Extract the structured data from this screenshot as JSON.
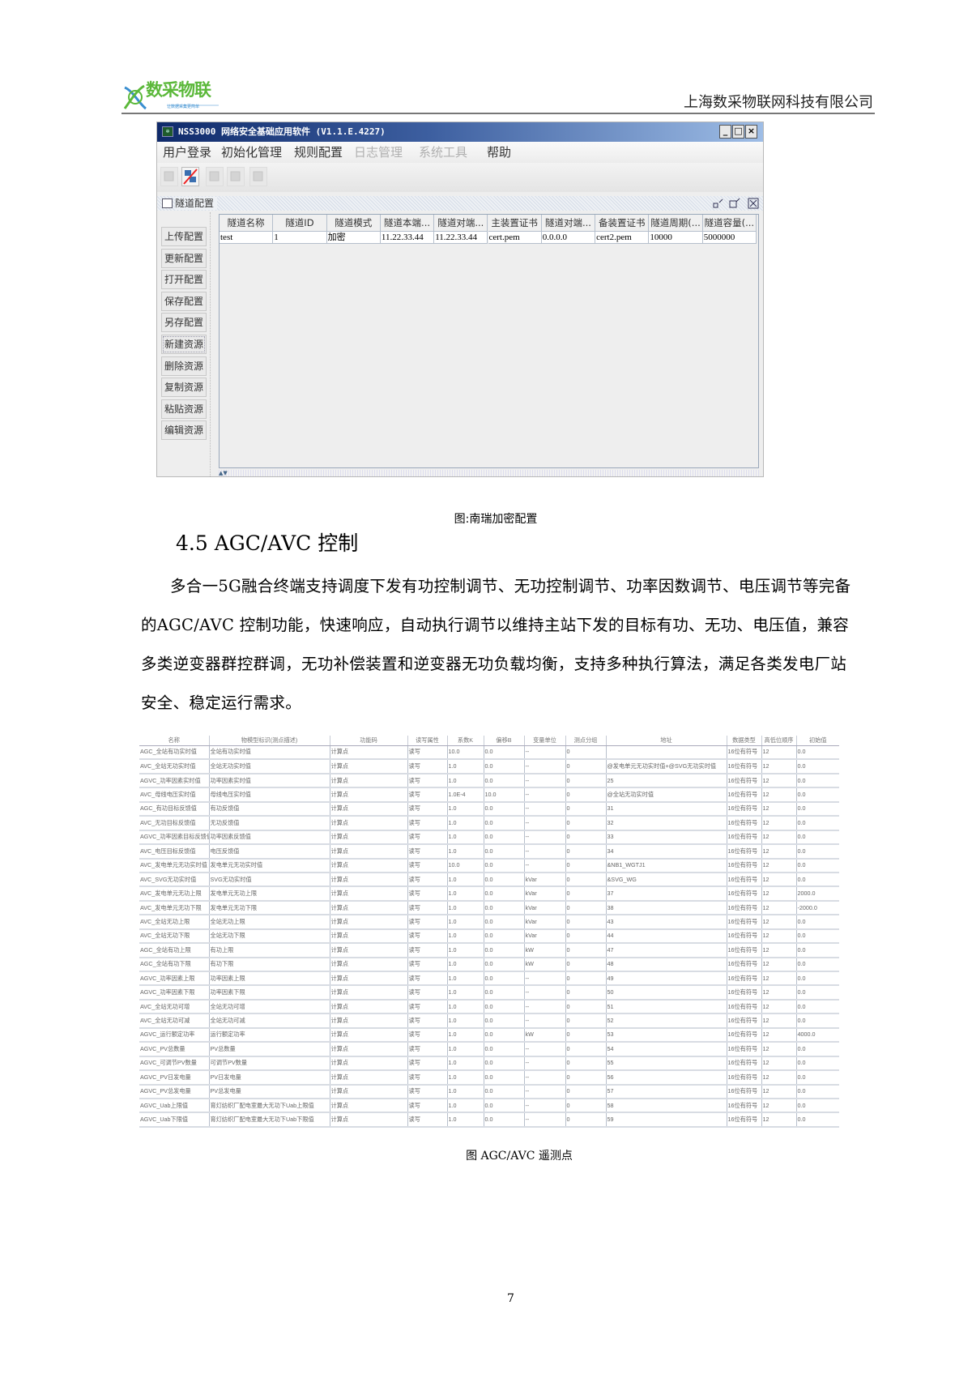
{
  "header": {
    "logo_text": "数采物联",
    "logo_slogan": "让数据采集更简单",
    "company": "上海数采物联网科技有限公司"
  },
  "window": {
    "title": "NSS3000 网络安全基础应用软件 (V1.1.E.4227)",
    "app_icon": "app-logo-icon",
    "controls": {
      "minimize": "_",
      "maximize": "□",
      "close": "×"
    },
    "menu": [
      {
        "label": "用户登录",
        "enabled": true
      },
      {
        "label": "初始化管理",
        "enabled": true
      },
      {
        "label": "规则配置",
        "enabled": true
      },
      {
        "label": "日志管理",
        "enabled": false
      },
      {
        "label": "系统工具",
        "enabled": false
      },
      {
        "label": "帮助",
        "enabled": true
      }
    ],
    "toolbar_icons": [
      "login-icon",
      "disconnect-icon",
      "config-icon",
      "form-icon",
      "export-icon"
    ],
    "inner_frame": {
      "title": "隧道配置"
    },
    "side_buttons": [
      "上传配置",
      "更新配置",
      "打开配置",
      "保存配置",
      "另存配置",
      "新建资源",
      "删除资源",
      "复制资源",
      "粘贴资源",
      "编辑资源"
    ],
    "table": {
      "columns": [
        "隧道名称",
        "隧道ID",
        "隧道模式",
        "隧道本端...",
        "隧道对端...",
        "主装置证书",
        "隧道对端...",
        "备装置证书",
        "隧道周期(...",
        "隧道容量(..."
      ],
      "rows": [
        [
          "test",
          "1",
          "加密",
          "11.22.33.44",
          "11.22.33.44",
          "cert.pem",
          "0.0.0.0",
          "cert2.pem",
          "10000",
          "5000000"
        ]
      ]
    }
  },
  "caption1": "图:南瑞加密配置",
  "section": {
    "heading": "4.5 AGC/AVC 控制",
    "paragraph": "多合一5G融合终端支持调度下发有功控制调节、无功控制调节、功率因数调节、电压调节等完备的AGC/AVC 控制功能，快速响应，自动执行调节以维持主站下发的目标有功、无功、电压值，兼容多类逆变器群控群调，无功补偿装置和逆变器无功负载均衡，支持多种执行算法，满足各类发电厂站安全、稳定运行需求。"
  },
  "points_table": {
    "columns": [
      "名称",
      "物模型标识(测点描述)",
      "功能码",
      "读写属性",
      "系数K",
      "偏移B",
      "变量单位",
      "测点分组",
      "地址",
      "数据类型",
      "高低位顺序",
      "初始值"
    ],
    "rows": [
      [
        "AGC_全站有功实时值",
        "全站有功实时值",
        "计算点",
        "读写",
        "10.0",
        "0.0",
        "--",
        "0",
        "",
        "16位有符号",
        "12",
        "0.0"
      ],
      [
        "AVC_全站无功实时值",
        "全站无功实时值",
        "计算点",
        "读写",
        "1.0",
        "0.0",
        "--",
        "0",
        "@发电单元无功实时值+@SVG无功实时值",
        "16位有符号",
        "12",
        "0.0"
      ],
      [
        "AGVC_功率因素实时值",
        "功率因素实时值",
        "计算点",
        "读写",
        "1.0",
        "0.0",
        "--",
        "0",
        "25",
        "16位有符号",
        "12",
        "0.0"
      ],
      [
        "AVC_母线电压实时值",
        "母线电压实时值",
        "计算点",
        "读写",
        "1.0E-4",
        "10.0",
        "--",
        "0",
        "@全站无功实时值",
        "16位有符号",
        "12",
        "0.0"
      ],
      [
        "AGC_有功目标反馈值",
        "有功反馈值",
        "计算点",
        "读写",
        "1.0",
        "0.0",
        "--",
        "0",
        "31",
        "16位有符号",
        "12",
        "0.0"
      ],
      [
        "AVC_无功目标反馈值",
        "无功反馈值",
        "计算点",
        "读写",
        "1.0",
        "0.0",
        "--",
        "0",
        "32",
        "16位有符号",
        "12",
        "0.0"
      ],
      [
        "AGVC_功率因素目标反馈值",
        "功率因素反馈值",
        "计算点",
        "读写",
        "1.0",
        "0.0",
        "--",
        "0",
        "33",
        "16位有符号",
        "12",
        "0.0"
      ],
      [
        "AVC_电压目标反馈值",
        "电压反馈值",
        "计算点",
        "读写",
        "1.0",
        "0.0",
        "--",
        "0",
        "34",
        "16位有符号",
        "12",
        "0.0"
      ],
      [
        "AVC_发电单元无功实时值",
        "发电单元无功实时值",
        "计算点",
        "读写",
        "10.0",
        "0.0",
        "--",
        "0",
        "&NB1_WGTJ1",
        "16位有符号",
        "12",
        "0.0"
      ],
      [
        "AVC_SVG无功实时值",
        "SVG无功实时值",
        "计算点",
        "读写",
        "1.0",
        "0.0",
        "kVar",
        "0",
        "&SVG_WG",
        "16位有符号",
        "12",
        "0.0"
      ],
      [
        "AVC_发电单元无功上限",
        "发电单元无功上限",
        "计算点",
        "读写",
        "1.0",
        "0.0",
        "kVar",
        "0",
        "37",
        "16位有符号",
        "12",
        "2000.0"
      ],
      [
        "AVC_发电单元无功下限",
        "发电单元无功下限",
        "计算点",
        "读写",
        "1.0",
        "0.0",
        "kVar",
        "0",
        "38",
        "16位有符号",
        "12",
        "-2000.0"
      ],
      [
        "AVC_全站无功上限",
        "全站无功上限",
        "计算点",
        "读写",
        "1.0",
        "0.0",
        "kVar",
        "0",
        "43",
        "16位有符号",
        "12",
        "0.0"
      ],
      [
        "AVC_全站无功下限",
        "全站无功下限",
        "计算点",
        "读写",
        "1.0",
        "0.0",
        "kVar",
        "0",
        "44",
        "16位有符号",
        "12",
        "0.0"
      ],
      [
        "AGC_全站有功上限",
        "有功上限",
        "计算点",
        "读写",
        "1.0",
        "0.0",
        "kW",
        "0",
        "47",
        "16位有符号",
        "12",
        "0.0"
      ],
      [
        "AGC_全站有功下限",
        "有功下限",
        "计算点",
        "读写",
        "1.0",
        "0.0",
        "kW",
        "0",
        "48",
        "16位有符号",
        "12",
        "0.0"
      ],
      [
        "AGVC_功率因素上限",
        "功率因素上限",
        "计算点",
        "读写",
        "1.0",
        "0.0",
        "--",
        "0",
        "49",
        "16位有符号",
        "12",
        "0.0"
      ],
      [
        "AGVC_功率因素下限",
        "功率因素下限",
        "计算点",
        "读写",
        "1.0",
        "0.0",
        "--",
        "0",
        "50",
        "16位有符号",
        "12",
        "0.0"
      ],
      [
        "AVC_全站无功可增",
        "全站无功可增",
        "计算点",
        "读写",
        "1.0",
        "0.0",
        "--",
        "0",
        "51",
        "16位有符号",
        "12",
        "0.0"
      ],
      [
        "AVC_全站无功可减",
        "全站无功可减",
        "计算点",
        "读写",
        "1.0",
        "0.0",
        "--",
        "0",
        "52",
        "16位有符号",
        "12",
        "0.0"
      ],
      [
        "AGVC_运行额定功率",
        "运行额定功率",
        "计算点",
        "读写",
        "1.0",
        "0.0",
        "kW",
        "0",
        "53",
        "16位有符号",
        "12",
        "4000.0"
      ],
      [
        "AGVC_PV总数量",
        "PV总数量",
        "计算点",
        "读写",
        "1.0",
        "0.0",
        "--",
        "0",
        "54",
        "16位有符号",
        "12",
        "0.0"
      ],
      [
        "AGVC_可调节PV数量",
        "可调节PV数量",
        "计算点",
        "读写",
        "1.0",
        "0.0",
        "--",
        "0",
        "55",
        "16位有符号",
        "12",
        "0.0"
      ],
      [
        "AGVC_PV日发电量",
        "PV日发电量",
        "计算点",
        "读写",
        "1.0",
        "0.0",
        "--",
        "0",
        "56",
        "16位有符号",
        "12",
        "0.0"
      ],
      [
        "AGVC_PV总发电量",
        "PV总发电量",
        "计算点",
        "读写",
        "1.0",
        "0.0",
        "--",
        "0",
        "57",
        "16位有符号",
        "12",
        "0.0"
      ],
      [
        "AGVC_Uab上限值",
        "育灯纺织厂配电室最大无功下Uab上限值",
        "计算点",
        "读写",
        "1.0",
        "0.0",
        "--",
        "0",
        "58",
        "16位有符号",
        "12",
        "0.0"
      ],
      [
        "AGVC_Uab下限值",
        "育灯纺织厂配电室最大无功下Uab下限值",
        "计算点",
        "读写",
        "1.0",
        "0.0",
        "--",
        "0",
        "59",
        "16位有符号",
        "12",
        "0.0"
      ]
    ]
  },
  "caption2": "图  AGC/AVC 遥测点",
  "page_number": "7"
}
